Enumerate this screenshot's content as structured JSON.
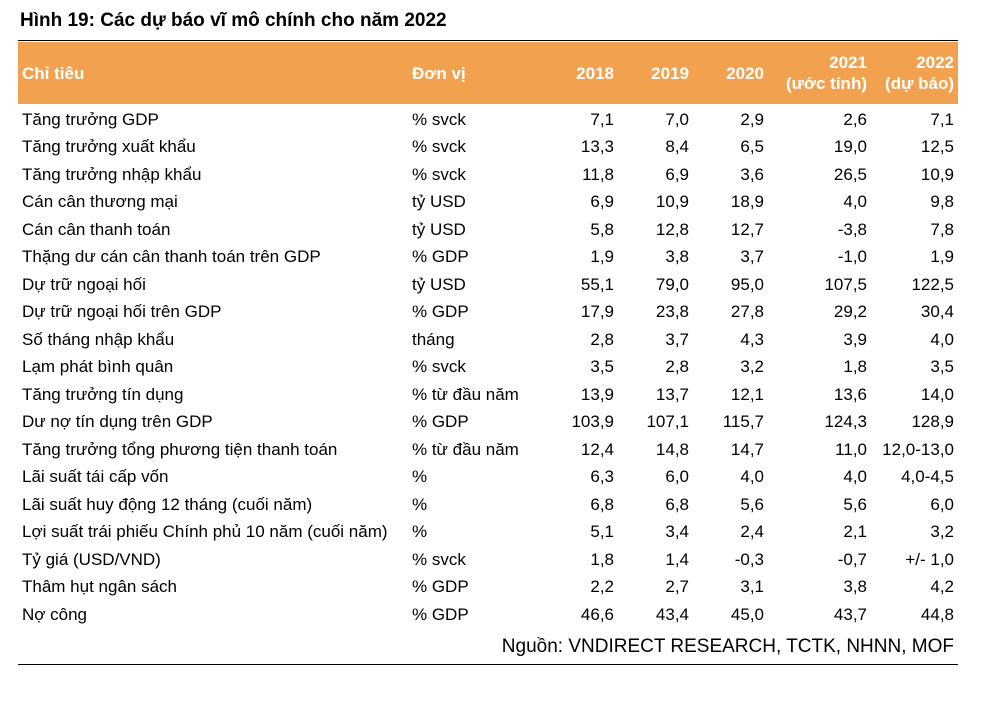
{
  "title": "Hình 19: Các dự báo vĩ mô chính cho năm 2022",
  "table": {
    "headers": {
      "indicator": "Chỉ tiêu",
      "unit": "Đơn vị",
      "y2018": "2018",
      "y2019": "2019",
      "y2020": "2020",
      "y2021_line1": "2021",
      "y2021_line2": "(ước tính)",
      "y2022_line1": "2022",
      "y2022_line2": "(dự báo)"
    },
    "header_color": "#f2a24e",
    "rows": [
      {
        "name": "Tăng trưởng GDP",
        "unit": "% svck",
        "v2018": "7,1",
        "v2019": "7,0",
        "v2020": "2,9",
        "v2021": "2,6",
        "v2022": "7,1"
      },
      {
        "name": "Tăng trưởng xuất khẩu",
        "unit": "% svck",
        "v2018": "13,3",
        "v2019": "8,4",
        "v2020": "6,5",
        "v2021": "19,0",
        "v2022": "12,5"
      },
      {
        "name": "Tăng trưởng nhập khẩu",
        "unit": "% svck",
        "v2018": "11,8",
        "v2019": "6,9",
        "v2020": "3,6",
        "v2021": "26,5",
        "v2022": "10,9"
      },
      {
        "name": "Cán cân thương mại",
        "unit": "tỷ USD",
        "v2018": "6,9",
        "v2019": "10,9",
        "v2020": "18,9",
        "v2021": "4,0",
        "v2022": "9,8"
      },
      {
        "name": "Cán cân thanh toán",
        "unit": "tỷ USD",
        "v2018": "5,8",
        "v2019": "12,8",
        "v2020": "12,7",
        "v2021": "-3,8",
        "v2022": "7,8"
      },
      {
        "name": "Thặng dư cán cân thanh toán trên GDP",
        "unit": "% GDP",
        "v2018": "1,9",
        "v2019": "3,8",
        "v2020": "3,7",
        "v2021": "-1,0",
        "v2022": "1,9"
      },
      {
        "name": "Dự trữ ngoại hối",
        "unit": "tỷ USD",
        "v2018": "55,1",
        "v2019": "79,0",
        "v2020": "95,0",
        "v2021": "107,5",
        "v2022": "122,5"
      },
      {
        "name": "Dự trữ ngoại hối trên GDP",
        "unit": "% GDP",
        "v2018": "17,9",
        "v2019": "23,8",
        "v2020": "27,8",
        "v2021": "29,2",
        "v2022": "30,4"
      },
      {
        "name": "Số tháng nhập khẩu",
        "unit": "tháng",
        "v2018": "2,8",
        "v2019": "3,7",
        "v2020": "4,3",
        "v2021": "3,9",
        "v2022": "4,0"
      },
      {
        "name": "Lạm phát bình quân",
        "unit": "% svck",
        "v2018": "3,5",
        "v2019": "2,8",
        "v2020": "3,2",
        "v2021": "1,8",
        "v2022": "3,5"
      },
      {
        "name": "Tăng trưởng tín dụng",
        "unit": "% từ đầu năm",
        "v2018": "13,9",
        "v2019": "13,7",
        "v2020": "12,1",
        "v2021": "13,6",
        "v2022": "14,0"
      },
      {
        "name": "Dư nợ tín dụng trên GDP",
        "unit": "% GDP",
        "v2018": "103,9",
        "v2019": "107,1",
        "v2020": "115,7",
        "v2021": "124,3",
        "v2022": "128,9"
      },
      {
        "name": "Tăng trưởng tổng phương tiện thanh toán",
        "unit": "% từ đầu năm",
        "v2018": "12,4",
        "v2019": "14,8",
        "v2020": "14,7",
        "v2021": "11,0",
        "v2022": "12,0-13,0"
      },
      {
        "name": "Lãi suất tái cấp vốn",
        "unit": "%",
        "v2018": "6,3",
        "v2019": "6,0",
        "v2020": "4,0",
        "v2021": "4,0",
        "v2022": "4,0-4,5"
      },
      {
        "name": "Lãi suất huy động 12 tháng (cuối năm)",
        "unit": "%",
        "v2018": "6,8",
        "v2019": "6,8",
        "v2020": "5,6",
        "v2021": "5,6",
        "v2022": "6,0"
      },
      {
        "name": "Lợi suất trái phiếu Chính phủ 10 năm (cuối năm)",
        "unit": "%",
        "v2018": "5,1",
        "v2019": "3,4",
        "v2020": "2,4",
        "v2021": "2,1",
        "v2022": "3,2"
      },
      {
        "name": "Tỷ giá (USD/VND)",
        "unit": "% svck",
        "v2018": "1,8",
        "v2019": "1,4",
        "v2020": "-0,3",
        "v2021": "-0,7",
        "v2022": "+/- 1,0"
      },
      {
        "name": "Thâm hụt ngân sách",
        "unit": "% GDP",
        "v2018": "2,2",
        "v2019": "2,7",
        "v2020": "3,1",
        "v2021": "3,8",
        "v2022": "4,2"
      },
      {
        "name": "Nợ công",
        "unit": "% GDP",
        "v2018": "46,6",
        "v2019": "43,4",
        "v2020": "45,0",
        "v2021": "43,7",
        "v2022": "44,8"
      }
    ]
  },
  "source": "Nguồn: VNDIRECT RESEARCH, TCTK, NHNN, MOF"
}
